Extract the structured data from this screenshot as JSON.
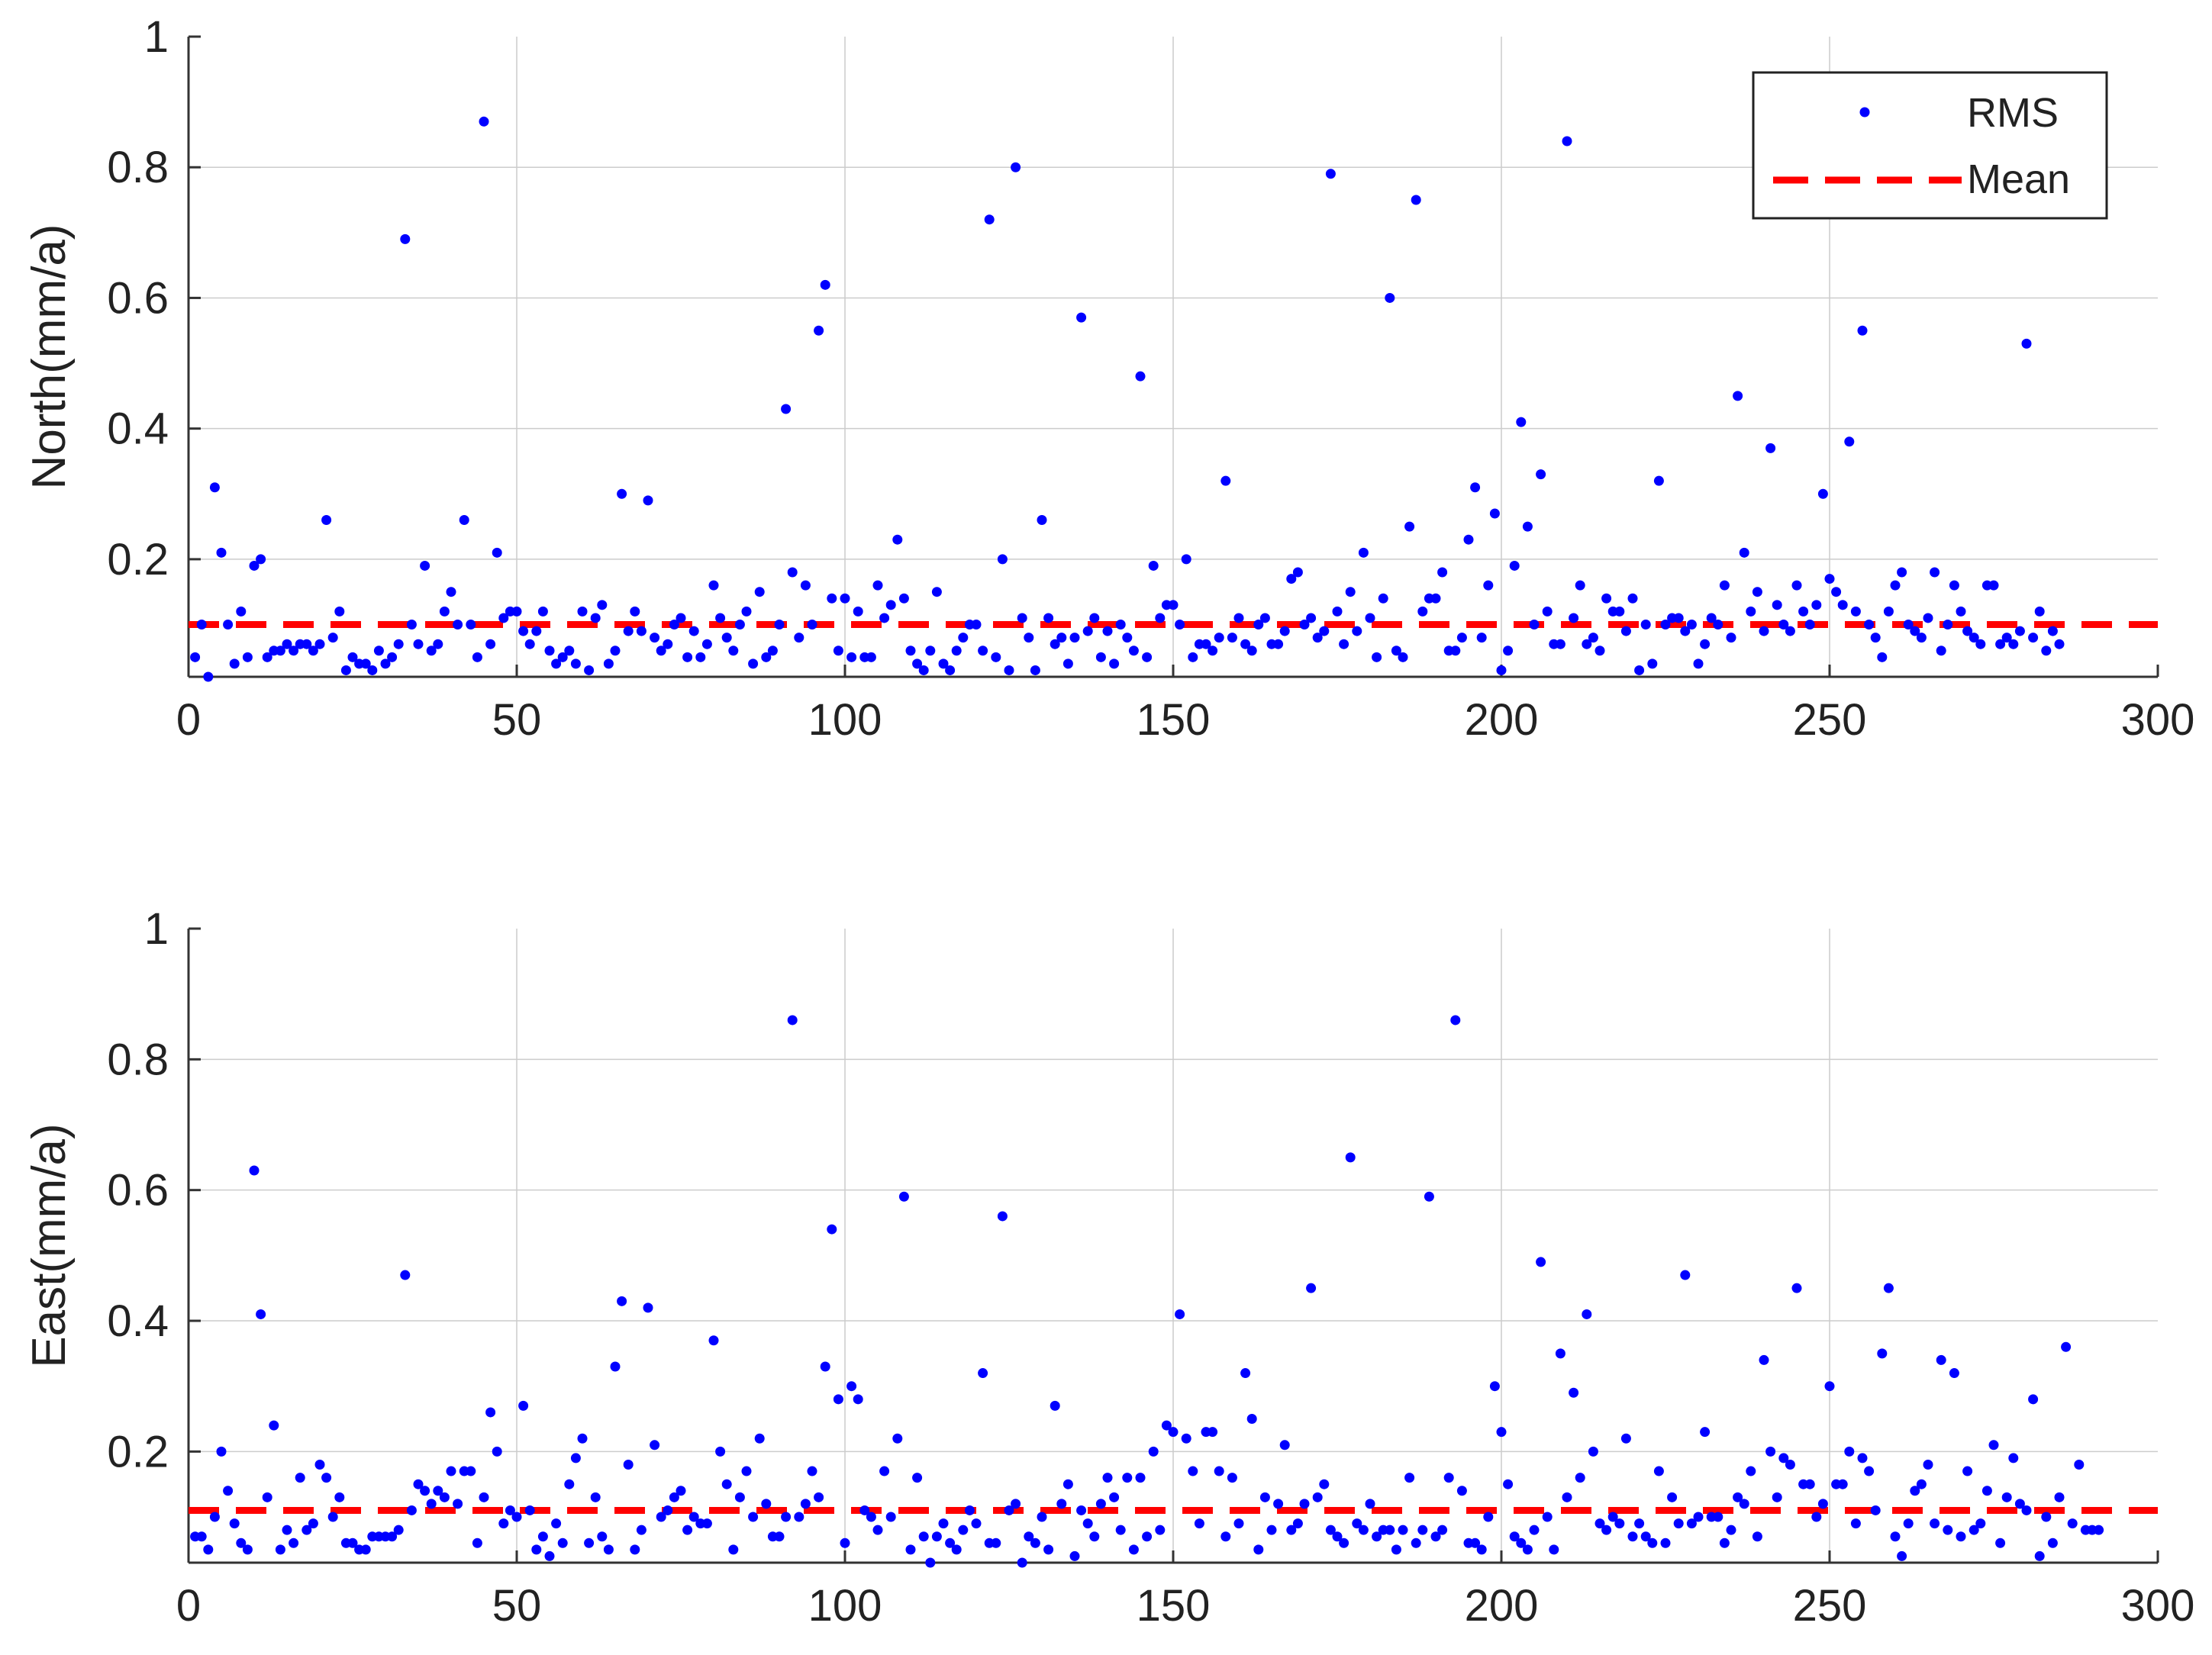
{
  "colors": {
    "rms": "#0000ff",
    "mean": "#ff0000",
    "grid": "#cccccc",
    "axis": "#333333"
  },
  "legend": {
    "rms": "RMS",
    "mean": "Mean",
    "position": "top-right (top panel)"
  },
  "chart_data": [
    {
      "type": "scatter",
      "ylabel": "North(mm/a)",
      "xlabel": "",
      "xlim": [
        0,
        300
      ],
      "ylim": [
        0.02,
        1
      ],
      "xticks": [
        "0",
        "50",
        "100",
        "150",
        "200",
        "250",
        "300"
      ],
      "yticks": [
        "0.2",
        "0.4",
        "0.6",
        "0.8",
        "1"
      ],
      "ytick_values": [
        0.2,
        0.4,
        0.6,
        0.8,
        1
      ],
      "xtick_values": [
        0,
        50,
        100,
        150,
        200,
        250,
        300
      ],
      "grid": true,
      "mean": 0.1,
      "series": [
        {
          "name": "RMS",
          "y": [
            0.05,
            0.1,
            0.02,
            0.31,
            0.21,
            0.1,
            0.04,
            0.12,
            0.05,
            0.19,
            0.2,
            0.05,
            0.06,
            0.06,
            0.07,
            0.06,
            0.07,
            0.07,
            0.06,
            0.07,
            0.26,
            0.08,
            0.12,
            0.03,
            0.05,
            0.04,
            0.04,
            0.03,
            0.06,
            0.04,
            0.05,
            0.07,
            0.69,
            0.1,
            0.07,
            0.19,
            0.06,
            0.07,
            0.12,
            0.15,
            0.1,
            0.26,
            0.1,
            0.05,
            0.87,
            0.07,
            0.21,
            0.11,
            0.12,
            0.12,
            0.09,
            0.07,
            0.09,
            0.12,
            0.06,
            0.04,
            0.05,
            0.06,
            0.04,
            0.12,
            0.03,
            0.11,
            0.13,
            0.04,
            0.06,
            0.3,
            0.09,
            0.12,
            0.09,
            0.29,
            0.08,
            0.06,
            0.07,
            0.1,
            0.11,
            0.05,
            0.09,
            0.05,
            0.07,
            0.16,
            0.11,
            0.08,
            0.06,
            0.1,
            0.12,
            0.04,
            0.15,
            0.05,
            0.06,
            0.1,
            0.43,
            0.18,
            0.08,
            0.16,
            0.1,
            0.55,
            0.62,
            0.14,
            0.06,
            0.14,
            0.05,
            0.12,
            0.05,
            0.05,
            0.16,
            0.11,
            0.13,
            0.23,
            0.14,
            0.06,
            0.04,
            0.03,
            0.06,
            0.15,
            0.04,
            0.03,
            0.06,
            0.08,
            0.1,
            0.1,
            0.06,
            0.72,
            0.05,
            0.2,
            0.03,
            0.8,
            0.11,
            0.08,
            0.03,
            0.26,
            0.11,
            0.07,
            0.08,
            0.04,
            0.08,
            0.57,
            0.09,
            0.11,
            0.05,
            0.09,
            0.04,
            0.1,
            0.08,
            0.06,
            0.48,
            0.05,
            0.19,
            0.11,
            0.13,
            0.13,
            0.1,
            0.2,
            0.05,
            0.07,
            0.07,
            0.06,
            0.08,
            0.32,
            0.08,
            0.11,
            0.07,
            0.06,
            0.1,
            0.11,
            0.07,
            0.07,
            0.09,
            0.17,
            0.18,
            0.1,
            0.11,
            0.08,
            0.09,
            0.79,
            0.12,
            0.07,
            0.15,
            0.09,
            0.21,
            0.11,
            0.05,
            0.14,
            0.6,
            0.06,
            0.05,
            0.25,
            0.75,
            0.12,
            0.14,
            0.14,
            0.18,
            0.06,
            0.06,
            0.08,
            0.23,
            0.31,
            0.08,
            0.16,
            0.27,
            0.03,
            0.06,
            0.19,
            0.41,
            0.25,
            0.1,
            0.33,
            0.12,
            0.07,
            0.07,
            0.84,
            0.11,
            0.16,
            0.07,
            0.08,
            0.06,
            0.14,
            0.12,
            0.12,
            0.09,
            0.14,
            0.03,
            0.1,
            0.04,
            0.32,
            0.1,
            0.11,
            0.11,
            0.09,
            0.1,
            0.04,
            0.07,
            0.11,
            0.1,
            0.16,
            0.08,
            0.45,
            0.21,
            0.12,
            0.15,
            0.09,
            0.37,
            0.13,
            0.1,
            0.09,
            0.16,
            0.12,
            0.1,
            0.13,
            0.3,
            0.17,
            0.15,
            0.13,
            0.38,
            0.12,
            0.55,
            0.1,
            0.08,
            0.05,
            0.12,
            0.16,
            0.18,
            0.1,
            0.09,
            0.08,
            0.11,
            0.18,
            0.06,
            0.1,
            0.16,
            0.12,
            0.09,
            0.08,
            0.07,
            0.16,
            0.16,
            0.07,
            0.08,
            0.07,
            0.09,
            0.53,
            0.08,
            0.12,
            0.06,
            0.09,
            0.07
          ]
        },
        {
          "name": "Mean",
          "y": [
            0.1
          ]
        }
      ]
    },
    {
      "type": "scatter",
      "ylabel": "East(mm/a)",
      "xlabel": "",
      "xlim": [
        0,
        300
      ],
      "ylim": [
        0.03,
        1
      ],
      "xticks": [
        "0",
        "50",
        "100",
        "150",
        "200",
        "250",
        "300"
      ],
      "yticks": [
        "0.2",
        "0.4",
        "0.6",
        "0.8",
        "1"
      ],
      "ytick_values": [
        0.2,
        0.4,
        0.6,
        0.8,
        1
      ],
      "xtick_values": [
        0,
        50,
        100,
        150,
        200,
        250,
        300
      ],
      "grid": true,
      "mean": 0.11,
      "series": [
        {
          "name": "RMS",
          "y": [
            0.07,
            0.07,
            0.05,
            0.1,
            0.2,
            0.14,
            0.09,
            0.06,
            0.05,
            0.63,
            0.41,
            0.13,
            0.24,
            0.05,
            0.08,
            0.06,
            0.16,
            0.08,
            0.09,
            0.18,
            0.16,
            0.1,
            0.13,
            0.06,
            0.06,
            0.05,
            0.05,
            0.07,
            0.07,
            0.07,
            0.07,
            0.08,
            0.47,
            0.11,
            0.15,
            0.14,
            0.12,
            0.14,
            0.13,
            0.17,
            0.12,
            0.17,
            0.17,
            0.06,
            0.13,
            0.26,
            0.2,
            0.09,
            0.11,
            0.1,
            0.27,
            0.11,
            0.05,
            0.07,
            0.04,
            0.09,
            0.06,
            0.15,
            0.19,
            0.22,
            0.06,
            0.13,
            0.07,
            0.05,
            0.33,
            0.43,
            0.18,
            0.05,
            0.08,
            0.42,
            0.21,
            0.1,
            0.11,
            0.13,
            0.14,
            0.08,
            0.1,
            0.09,
            0.09,
            0.37,
            0.2,
            0.15,
            0.05,
            0.13,
            0.17,
            0.1,
            0.22,
            0.12,
            0.07,
            0.07,
            0.1,
            0.86,
            0.1,
            0.12,
            0.17,
            0.13,
            0.33,
            0.54,
            0.28,
            0.06,
            0.3,
            0.28,
            0.11,
            0.1,
            0.08,
            0.17,
            0.1,
            0.22,
            0.59,
            0.05,
            0.16,
            0.07,
            0.03,
            0.07,
            0.09,
            0.06,
            0.05,
            0.08,
            0.11,
            0.09,
            0.32,
            0.06,
            0.06,
            0.56,
            0.11,
            0.12,
            0.03,
            0.07,
            0.06,
            0.1,
            0.05,
            0.27,
            0.12,
            0.15,
            0.04,
            0.11,
            0.09,
            0.07,
            0.12,
            0.16,
            0.13,
            0.08,
            0.16,
            0.05,
            0.16,
            0.07,
            0.2,
            0.08,
            0.24,
            0.23,
            0.41,
            0.22,
            0.17,
            0.09,
            0.23,
            0.23,
            0.17,
            0.07,
            0.16,
            0.09,
            0.32,
            0.25,
            0.05,
            0.13,
            0.08,
            0.12,
            0.21,
            0.08,
            0.09,
            0.12,
            0.45,
            0.13,
            0.15,
            0.08,
            0.07,
            0.06,
            0.65,
            0.09,
            0.08,
            0.12,
            0.07,
            0.08,
            0.08,
            0.05,
            0.08,
            0.16,
            0.06,
            0.08,
            0.59,
            0.07,
            0.08,
            0.16,
            0.86,
            0.14,
            0.06,
            0.06,
            0.05,
            0.1,
            0.3,
            0.23,
            0.15,
            0.07,
            0.06,
            0.05,
            0.08,
            0.49,
            0.1,
            0.05,
            0.35,
            0.13,
            0.29,
            0.16,
            0.41,
            0.2,
            0.09,
            0.08,
            0.1,
            0.09,
            0.22,
            0.07,
            0.09,
            0.07,
            0.06,
            0.17,
            0.06,
            0.13,
            0.09,
            0.47,
            0.09,
            0.1,
            0.23,
            0.1,
            0.1,
            0.06,
            0.08,
            0.13,
            0.12,
            0.17,
            0.07,
            0.34,
            0.2,
            0.13,
            0.19,
            0.18,
            0.45,
            0.15,
            0.15,
            0.1,
            0.12,
            0.3,
            0.15,
            0.15,
            0.2,
            0.09,
            0.19,
            0.17,
            0.11,
            0.35,
            0.45,
            0.07,
            0.04,
            0.09,
            0.14,
            0.15,
            0.18,
            0.09,
            0.34,
            0.08,
            0.32,
            0.07,
            0.17,
            0.08,
            0.09,
            0.14,
            0.21,
            0.06,
            0.13,
            0.19,
            0.12,
            0.11,
            0.28,
            0.04,
            0.1,
            0.06,
            0.13,
            0.36,
            0.09,
            0.18,
            0.08,
            0.08,
            0.08
          ]
        },
        {
          "name": "Mean",
          "y": [
            0.11
          ]
        }
      ]
    }
  ]
}
